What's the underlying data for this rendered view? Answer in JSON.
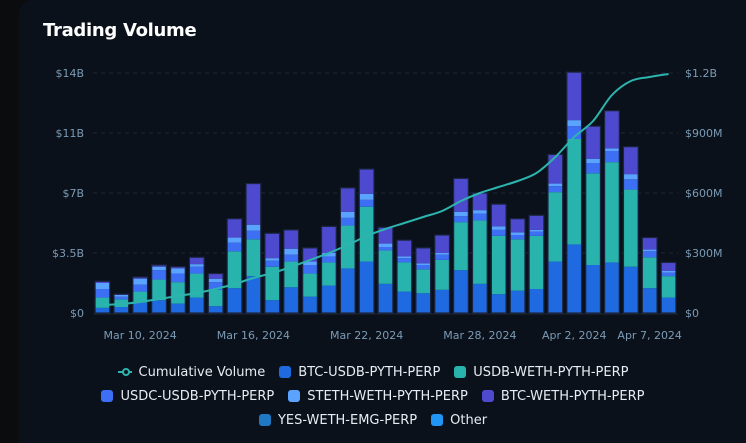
{
  "title": "Trading Volume",
  "chart_data": {
    "type": "bar",
    "stacked": true,
    "title": "Trading Volume",
    "xlabel": "",
    "ylabel": "",
    "y_left": {
      "ylim": [
        0,
        14
      ],
      "unit": "B",
      "ticks": [
        "$0",
        "$3.5B",
        "$7B",
        "$11B",
        "$14B"
      ],
      "tick_values": [
        0,
        3.5,
        7,
        10.5,
        14
      ]
    },
    "y_right": {
      "ylim": [
        0,
        1200
      ],
      "unit": "M",
      "ticks": [
        "$0",
        "$300M",
        "$600M",
        "$900M",
        "$1.2B"
      ],
      "tick_values": [
        0,
        300,
        600,
        900,
        1200
      ]
    },
    "x_tick_labels": [
      "Mar 10, 2024",
      "Mar 16, 2024",
      "Mar 22, 2024",
      "Mar 28, 2024",
      "Apr 2, 2024",
      "Apr 7, 2024"
    ],
    "x_tick_indices": [
      2,
      8,
      14,
      20,
      25,
      29
    ],
    "grid": true,
    "legend_position": "bottom",
    "categories": [
      "Mar 8",
      "Mar 9",
      "Mar 10",
      "Mar 11",
      "Mar 12",
      "Mar 13",
      "Mar 14",
      "Mar 15",
      "Mar 16",
      "Mar 17",
      "Mar 18",
      "Mar 19",
      "Mar 20",
      "Mar 21",
      "Mar 22",
      "Mar 23",
      "Mar 24",
      "Mar 25",
      "Mar 26",
      "Mar 27",
      "Mar 28",
      "Mar 29",
      "Mar 30",
      "Mar 31",
      "Apr 1",
      "Apr 2",
      "Apr 3",
      "Apr 4",
      "Apr 5",
      "Apr 6",
      "Apr 7"
    ],
    "series": [
      {
        "name": "BTC-USDB-PYTH-PERP",
        "color": "#1f6ae0",
        "values": [
          0.3,
          0.35,
          0.6,
          0.75,
          0.55,
          0.9,
          0.4,
          1.45,
          2.15,
          0.75,
          1.5,
          0.95,
          1.6,
          2.6,
          3.0,
          1.7,
          1.25,
          1.15,
          1.35,
          2.5,
          1.7,
          1.1,
          1.3,
          1.4,
          3.0,
          4.0,
          2.8,
          2.95,
          2.7,
          1.45,
          0.9
        ]
      },
      {
        "name": "USDB-WETH-PYTH-PERP",
        "color": "#28b3ad",
        "values": [
          0.6,
          0.45,
          0.65,
          1.2,
          1.25,
          1.4,
          0.95,
          2.15,
          2.15,
          1.95,
          1.5,
          1.35,
          1.35,
          2.5,
          3.2,
          1.95,
          1.7,
          1.4,
          1.75,
          2.8,
          3.7,
          3.4,
          3.0,
          3.1,
          4.05,
          6.15,
          5.35,
          5.85,
          4.5,
          1.8,
          1.25
        ]
      },
      {
        "name": "USDC-USDB-PYTH-PERP",
        "color": "#3d6ff5",
        "values": [
          0.5,
          0.15,
          0.4,
          0.55,
          0.5,
          0.4,
          0.45,
          0.5,
          0.5,
          0.35,
          0.4,
          0.5,
          0.35,
          0.45,
          0.4,
          0.2,
          0.25,
          0.25,
          0.3,
          0.35,
          0.4,
          0.35,
          0.25,
          0.25,
          0.35,
          0.75,
          0.6,
          0.65,
          0.6,
          0.35,
          0.2
        ]
      },
      {
        "name": "STETH-WETH-PYTH-PERP",
        "color": "#5aa3ff",
        "values": [
          0.35,
          0.1,
          0.35,
          0.2,
          0.3,
          0.15,
          0.2,
          0.3,
          0.35,
          0.15,
          0.35,
          0.2,
          0.2,
          0.35,
          0.35,
          0.2,
          0.1,
          0.1,
          0.1,
          0.25,
          0.2,
          0.2,
          0.15,
          0.1,
          0.15,
          0.35,
          0.25,
          0.15,
          0.3,
          0.1,
          0.1
        ]
      },
      {
        "name": "BTC-WETH-PYTH-PERP",
        "color": "#4e4ad0",
        "values": [
          0.1,
          0.05,
          0.1,
          0.1,
          0.1,
          0.4,
          0.3,
          1.1,
          2.4,
          1.45,
          1.1,
          0.8,
          1.55,
          1.4,
          1.45,
          0.95,
          0.95,
          0.9,
          1.05,
          1.95,
          1.0,
          1.3,
          0.8,
          0.85,
          1.7,
          2.8,
          1.9,
          2.2,
          1.6,
          0.7,
          0.5
        ]
      },
      {
        "name": "YES-WETH-EMG-PERP",
        "color": "#1f78c1",
        "values": [
          0,
          0,
          0,
          0,
          0,
          0,
          0,
          0,
          0,
          0,
          0,
          0,
          0,
          0,
          0,
          0,
          0,
          0,
          0,
          0,
          0,
          0,
          0,
          0,
          0,
          0,
          0,
          0,
          0,
          0,
          0
        ]
      },
      {
        "name": "Other",
        "color": "#2195f3",
        "values": [
          0,
          0,
          0,
          0,
          0,
          0,
          0,
          0,
          0,
          0,
          0,
          0,
          0,
          0,
          0,
          0,
          0,
          0,
          0,
          0,
          0,
          0,
          0,
          0,
          0,
          0,
          0,
          0,
          0,
          0,
          0
        ]
      }
    ],
    "line_series": {
      "name": "Cumulative Volume",
      "color": "#2bb5ad",
      "axis": "right",
      "values_m": [
        40,
        45,
        55,
        70,
        85,
        100,
        120,
        145,
        175,
        200,
        230,
        265,
        300,
        340,
        385,
        420,
        450,
        480,
        510,
        560,
        600,
        630,
        660,
        700,
        780,
        880,
        960,
        1090,
        1160,
        1180,
        1195
      ]
    }
  },
  "legend": {
    "rows": [
      [
        {
          "label": "Cumulative Volume",
          "kind": "line",
          "color": "#2bb5ad"
        },
        {
          "label": "BTC-USDB-PYTH-PERP",
          "kind": "box",
          "color": "#1f6ae0"
        },
        {
          "label": "USDB-WETH-PYTH-PERP",
          "kind": "box",
          "color": "#28b3ad"
        }
      ],
      [
        {
          "label": "USDC-USDB-PYTH-PERP",
          "kind": "box",
          "color": "#3d6ff5"
        },
        {
          "label": "STETH-WETH-PYTH-PERP",
          "kind": "box",
          "color": "#5aa3ff"
        },
        {
          "label": "BTC-WETH-PYTH-PERP",
          "kind": "box",
          "color": "#4e4ad0"
        }
      ],
      [
        {
          "label": "YES-WETH-EMG-PERP",
          "kind": "box",
          "color": "#1f78c1"
        },
        {
          "label": "Other",
          "kind": "box",
          "color": "#2195f3"
        }
      ]
    ]
  }
}
